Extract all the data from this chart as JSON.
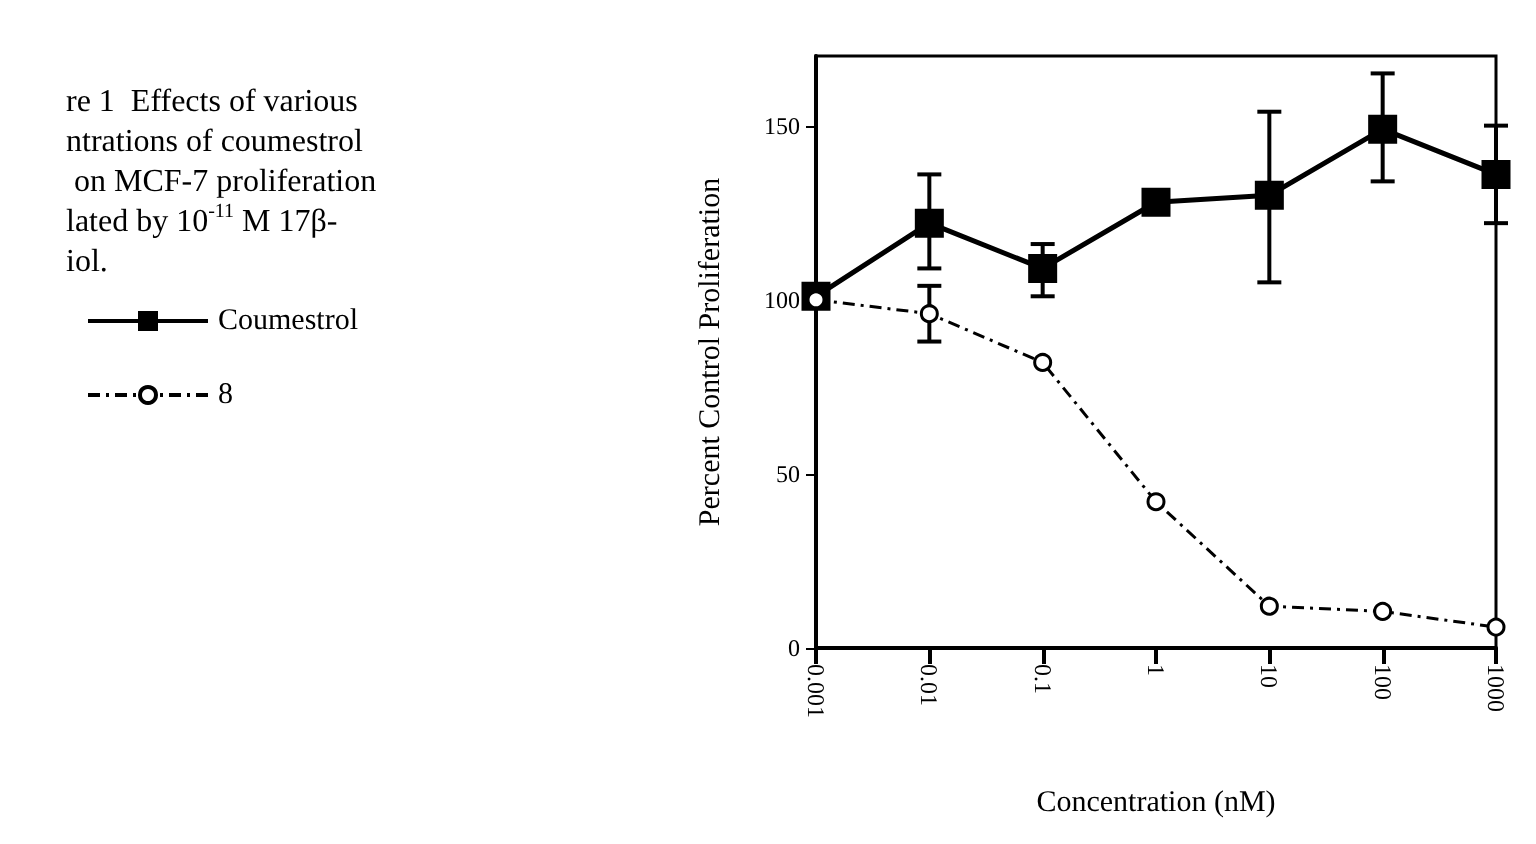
{
  "chart_data": {
    "type": "line",
    "title": "re 1  Effects of various\nntrations of coumestrol\n on MCF-7 proliferation\nlated by 10$^{-11}$ M 17β-\niol.",
    "xlabel": "Concentration (nM)",
    "ylabel": "Percent Control Proliferation",
    "x": [
      0.001,
      0.01,
      0.1,
      1,
      10,
      100,
      1000
    ],
    "series": [
      {
        "name": "Coumestrol",
        "color": "#000000",
        "marker": "square",
        "line_style": "solid",
        "values": [
          101,
          122,
          109,
          128,
          130,
          149,
          136
        ],
        "errors": [
          null,
          [
            109,
            136
          ],
          [
            101,
            116
          ],
          null,
          [
            105,
            154
          ],
          [
            134,
            165
          ],
          [
            122,
            150
          ]
        ]
      },
      {
        "name": "8",
        "color": "#000000",
        "marker": "circle",
        "line_style": "dashed",
        "values": [
          100,
          96,
          82,
          42,
          12,
          10.5,
          6
        ],
        "errors": [
          null,
          [
            88,
            104
          ],
          null,
          null,
          null,
          null,
          null
        ]
      }
    ],
    "log": "x",
    "xlim": [
      0.001,
      1000
    ],
    "xticks": [
      0.001,
      0.01,
      0.1,
      1,
      10,
      100,
      1000
    ],
    "ylim": [
      0,
      170
    ],
    "yticks": [
      0,
      50,
      100,
      150
    ],
    "grid": false,
    "legend": "left"
  }
}
